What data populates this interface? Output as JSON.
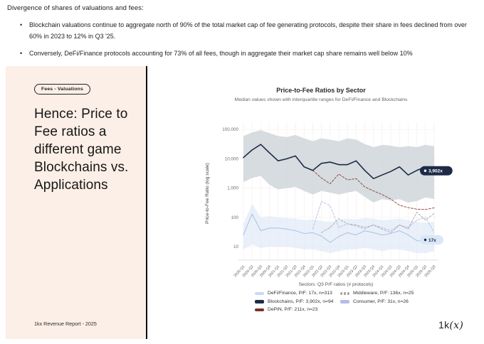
{
  "header": {
    "title": "Divergence of shares of valuations and fees:",
    "bullet_icon": "•",
    "bullets": [
      "Blockchain valuations continue to aggregate north of 90% of the total market cap of fee generating protocols, despite their share in fees declined from over 60% in 2023 to 12% in Q3 '25.",
      "Conversely, DeFi/Finance protocols accounting for 73% of all fees, though in aggregate their market cap share remains well below 10%"
    ]
  },
  "panel": {
    "badge": "Fees - Valuations",
    "heading": "Hence: Price to Fee ratios a different game Blockchains vs. Applications",
    "footer": "1kx Revenue Report  - 2025",
    "bg_color": "#fcefe7"
  },
  "logo": {
    "pre": "1k",
    "italic": "(x)"
  },
  "chart_data": {
    "type": "line",
    "title": "Price-to-Fee Ratios by Sector",
    "subtitle": "Median values shown with interquartile ranges for DeFi/Finance and Blockchains",
    "ylabel": "Price-to-Fee Ratio (log scale)",
    "y_scale": "log",
    "ylim": [
      10,
      178000
    ],
    "grid": true,
    "y_ticks": [
      {
        "label": "100,000",
        "value": 100000
      },
      {
        "label": "10,000",
        "value": 10000
      },
      {
        "label": "1,000",
        "value": 1000
      },
      {
        "label": "100",
        "value": 100
      },
      {
        "label": "10",
        "value": 10
      }
    ],
    "categories": [
      "2020-Q1",
      "2020-Q2",
      "2020-Q3",
      "2020-Q4",
      "2021-Q1",
      "2021-Q2",
      "2021-Q3",
      "2021-Q4",
      "2022-Q1",
      "2022-Q2",
      "2022-Q3",
      "2022-Q4",
      "2023-Q1",
      "2023-Q2",
      "2023-Q3",
      "2023-Q4",
      "2024-Q1",
      "2024-Q2",
      "2024-Q3",
      "2024-Q4",
      "2025-Q1",
      "2025-Q2",
      "2025-Q3"
    ],
    "series": [
      {
        "name": "Blockchains",
        "color": "#1e2b47",
        "width": 1.6,
        "dash": null,
        "values": [
          11000,
          20000,
          31000,
          16000,
          8500,
          10000,
          12500,
          5300,
          4000,
          7000,
          7700,
          6300,
          6300,
          8500,
          4000,
          2100,
          2800,
          3700,
          5300,
          2800,
          4000,
          5300,
          3902
        ],
        "band": {
          "fill": "#d2d8db",
          "opacity": 0.9,
          "upper": [
            60000,
            80000,
            95000,
            75000,
            60000,
            55000,
            65000,
            50000,
            40000,
            50000,
            45000,
            40000,
            50000,
            45000,
            32000,
            25000,
            30000,
            28000,
            25000,
            27000,
            25000,
            30000,
            27000
          ],
          "lower": [
            1600,
            2200,
            2600,
            1300,
            900,
            1000,
            1100,
            800,
            600,
            800,
            700,
            600,
            700,
            800,
            500,
            320,
            420,
            380,
            420,
            320,
            360,
            480,
            420
          ]
        }
      },
      {
        "name": "DeFi/Finance",
        "color": "#a6c1e2",
        "width": 1,
        "dash": null,
        "values": [
          25,
          130,
          35,
          43,
          43,
          40,
          35,
          28,
          30,
          23,
          14,
          22,
          30,
          25,
          35,
          30,
          25,
          28,
          35,
          25,
          16,
          15,
          17
        ],
        "band": {
          "fill": "#dfeaf6",
          "opacity": 0.7,
          "upper": [
            60,
            290,
            100,
            110,
            100,
            95,
            90,
            80,
            85,
            75,
            70,
            80,
            90,
            85,
            95,
            90,
            80,
            85,
            90,
            80,
            70,
            65,
            70
          ],
          "lower": [
            8,
            12,
            9,
            10,
            10,
            10,
            9,
            8,
            8,
            7,
            6,
            7,
            8,
            8,
            9,
            8,
            7,
            8,
            8,
            7,
            6,
            6,
            7
          ]
        }
      },
      {
        "name": "DePIN",
        "color": "#8a4038",
        "width": 0.9,
        "dash": "3,2",
        "values": [
          null,
          null,
          null,
          null,
          null,
          null,
          null,
          null,
          4000,
          2200,
          1400,
          3000,
          1900,
          2100,
          1100,
          800,
          600,
          420,
          260,
          215,
          190,
          185,
          211
        ]
      },
      {
        "name": "Middleware",
        "color": "#a8a8a8",
        "width": 0.9,
        "dash": "3,2",
        "values": [
          null,
          null,
          null,
          null,
          null,
          null,
          null,
          null,
          null,
          30,
          45,
          90,
          60,
          55,
          45,
          55,
          40,
          30,
          55,
          40,
          150,
          80,
          136
        ]
      },
      {
        "name": "Consumer",
        "color": "#b6bce7",
        "width": 0.9,
        "dash": "3,2",
        "values": [
          null,
          null,
          null,
          null,
          null,
          null,
          null,
          null,
          40,
          350,
          250,
          45,
          60,
          50,
          40,
          55,
          45,
          35,
          55,
          45,
          80,
          100,
          31
        ]
      }
    ],
    "annotations": [
      {
        "text": "3,902x",
        "value": 3902,
        "bg": "#1e2b47",
        "fg": "#ffffff"
      },
      {
        "text": "17x",
        "value": 17,
        "bg": "#d9e7f7",
        "fg": "#1e2b47"
      }
    ],
    "legend": {
      "title": "Sectors: Q3 P/F ratios (# protocols)",
      "legend_position": "bottom",
      "columns": [
        [
          {
            "label": "DeFi/Finance, P/F: 17x, n=313",
            "swatch": "#c7dbf2",
            "dashed": false
          },
          {
            "label": "Blockchains, P/F: 3,902x, n=94",
            "swatch": "#1e2b47",
            "dashed": false
          },
          {
            "label": "DePIN, P/F: 211x, n=23",
            "swatch": "#7d2f27",
            "dashed": false
          }
        ],
        [
          {
            "label": "Middleware, P/F: 136x, n=25",
            "swatch": "#a8a8a8",
            "dashed": true
          },
          {
            "label": "Consumer, P/F: 31x, n=26",
            "swatch": "#b6bce7",
            "dashed": false
          }
        ]
      ]
    }
  }
}
